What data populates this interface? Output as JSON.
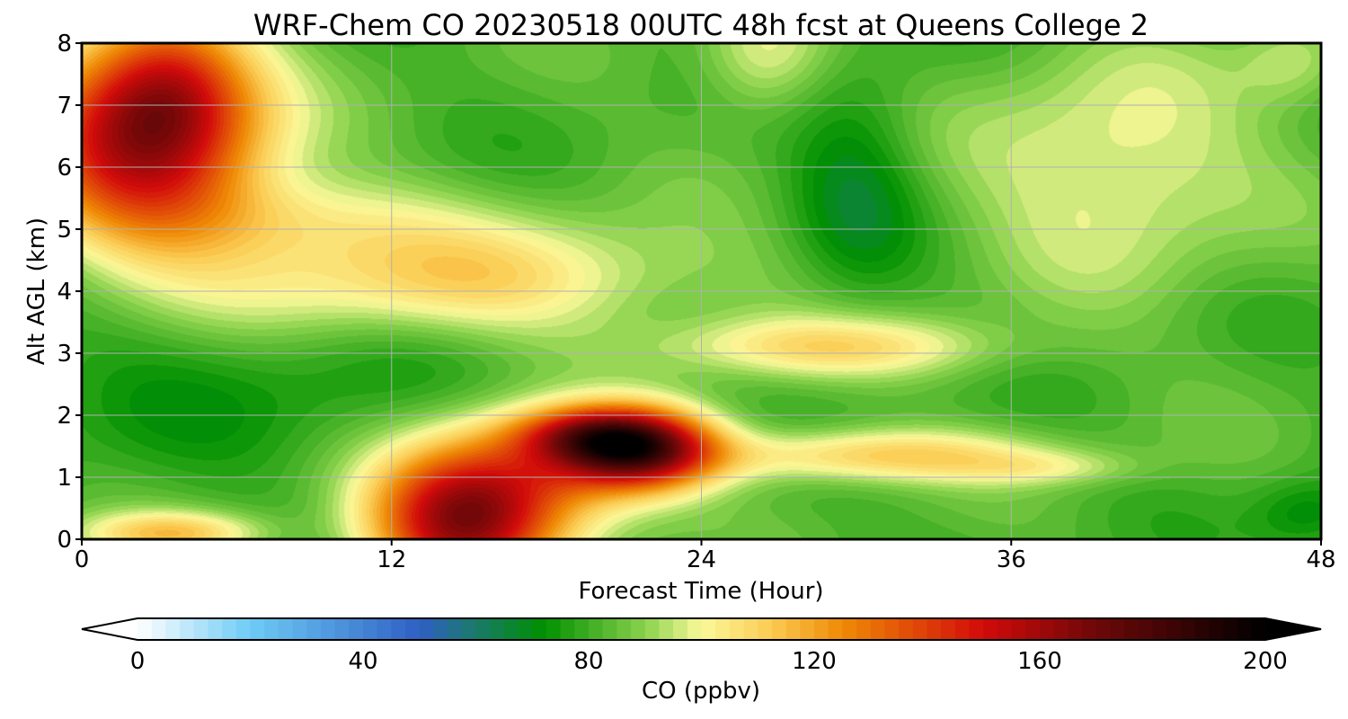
{
  "chart_data": {
    "type": "heatmap",
    "title": "WRF-Chem CO  20230518 00UTC 48h fcst at Queens College 2",
    "xlabel": "Forecast Time (Hour)",
    "ylabel": "Alt AGL (km)",
    "xlim": [
      0,
      48
    ],
    "ylim": [
      0,
      8
    ],
    "x_ticks": [
      0,
      12,
      24,
      36,
      48
    ],
    "y_ticks": [
      0,
      1,
      2,
      3,
      4,
      5,
      6,
      7,
      8
    ],
    "grid": true,
    "colorbar": {
      "label": "CO  (ppbv)",
      "range": [
        0,
        200
      ],
      "ticks": [
        0,
        40,
        80,
        120,
        160,
        200
      ],
      "extend": "both",
      "colormap_stops": [
        {
          "v": 0,
          "color": "#ffffff"
        },
        {
          "v": 20,
          "color": "#6ecbf5"
        },
        {
          "v": 50,
          "color": "#2f5fc4"
        },
        {
          "v": 60,
          "color": "#1a7a6a"
        },
        {
          "v": 72,
          "color": "#009000"
        },
        {
          "v": 90,
          "color": "#8ad24c"
        },
        {
          "v": 100,
          "color": "#fbf99a"
        },
        {
          "v": 112,
          "color": "#fbcd55"
        },
        {
          "v": 125,
          "color": "#f08a05"
        },
        {
          "v": 150,
          "color": "#d10a0a"
        },
        {
          "v": 170,
          "color": "#6e0808"
        },
        {
          "v": 200,
          "color": "#000000"
        }
      ]
    },
    "field": {
      "background_ppbv": 82,
      "features": [
        {
          "x": 2.5,
          "y": 6.5,
          "sx": 3.2,
          "sy": 1.2,
          "amp": 75
        },
        {
          "x": 3.5,
          "y": 7.4,
          "sx": 2.0,
          "sy": 0.8,
          "amp": 25
        },
        {
          "x": 14.5,
          "y": 0.2,
          "sx": 2.5,
          "sy": 0.8,
          "amp": 65
        },
        {
          "x": 17.0,
          "y": 0.9,
          "sx": 3.0,
          "sy": 0.8,
          "amp": 40
        },
        {
          "x": 21.5,
          "y": 1.45,
          "sx": 2.2,
          "sy": 0.45,
          "amp": 90
        },
        {
          "x": 19.5,
          "y": 1.7,
          "sx": 2.0,
          "sy": 0.3,
          "amp": 35
        },
        {
          "x": 30.5,
          "y": 1.35,
          "sx": 4.5,
          "sy": 0.3,
          "amp": 30
        },
        {
          "x": 37.5,
          "y": 1.15,
          "sx": 2.5,
          "sy": 0.2,
          "amp": 12
        },
        {
          "x": 14.0,
          "y": 4.2,
          "sx": 7.0,
          "sy": 0.7,
          "amp": 28
        },
        {
          "x": 29.0,
          "y": 3.1,
          "sx": 4.5,
          "sy": 0.35,
          "amp": 25
        },
        {
          "x": 8.0,
          "y": 5.2,
          "sx": 4.0,
          "sy": 0.5,
          "amp": 15
        },
        {
          "x": 40.0,
          "y": 6.0,
          "sx": 4.0,
          "sy": 1.3,
          "amp": 20
        },
        {
          "x": 26.5,
          "y": 7.8,
          "sx": 1.8,
          "sy": 0.7,
          "amp": 18
        },
        {
          "x": 47.0,
          "y": 7.7,
          "sx": 1.5,
          "sy": 0.5,
          "amp": 12
        },
        {
          "x": 30.0,
          "y": 5.7,
          "sx": 1.8,
          "sy": 1.3,
          "amp": -14
        },
        {
          "x": 6.0,
          "y": 2.5,
          "sx": 8.0,
          "sy": 1.1,
          "amp": -8
        },
        {
          "x": 47.5,
          "y": 0.4,
          "sx": 1.5,
          "sy": 0.4,
          "amp": -12
        },
        {
          "x": 3.5,
          "y": 0.1,
          "sx": 2.5,
          "sy": 0.25,
          "amp": 30
        }
      ]
    }
  }
}
